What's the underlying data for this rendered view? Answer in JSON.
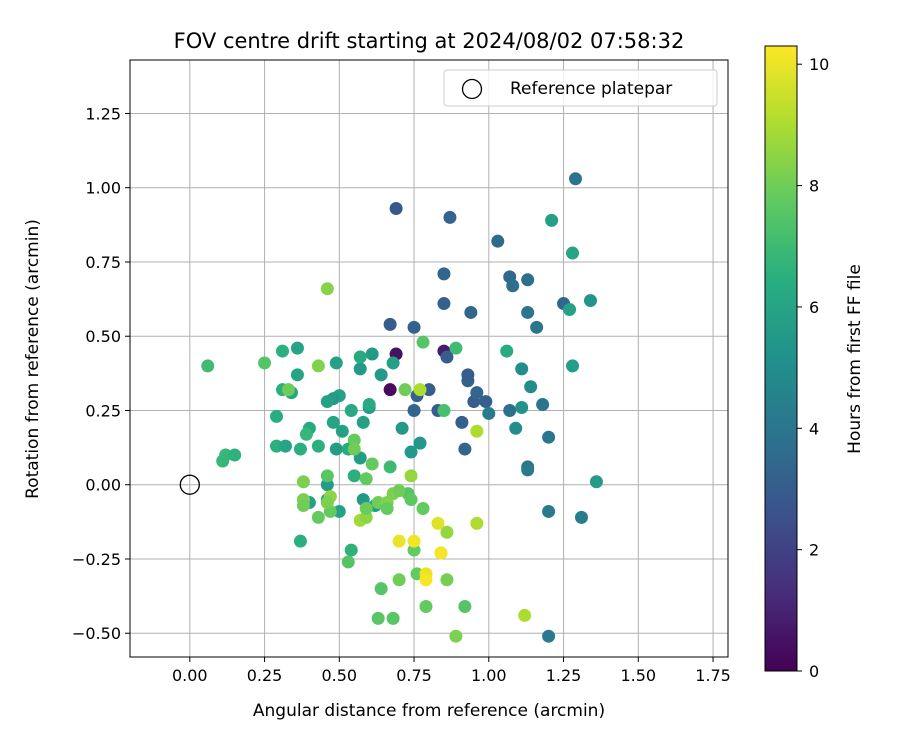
{
  "chart_data": {
    "type": "scatter",
    "title": "FOV centre drift starting at 2024/08/02 07:58:32",
    "xlabel": "Angular distance from reference (arcmin)",
    "ylabel": "Rotation from reference (arcmin)",
    "colorbar_label": "Hours from first FF file",
    "xlim": [
      -0.2,
      1.8
    ],
    "ylim": [
      -0.58,
      1.43
    ],
    "clim": [
      0,
      10.3
    ],
    "colormap": "viridis",
    "grid": true,
    "legend_position": "top-right",
    "x_ticks": [
      0.0,
      0.25,
      0.5,
      0.75,
      1.0,
      1.25,
      1.5,
      1.75
    ],
    "x_tick_labels": [
      "0.00",
      "0.25",
      "0.50",
      "0.75",
      "1.00",
      "1.25",
      "1.50",
      "1.75"
    ],
    "y_ticks": [
      -0.5,
      -0.25,
      0.0,
      0.25,
      0.5,
      0.75,
      1.0,
      1.25
    ],
    "y_tick_labels": [
      "−0.50",
      "−0.25",
      "0.00",
      "0.25",
      "0.50",
      "0.75",
      "1.00",
      "1.25"
    ],
    "c_ticks": [
      0,
      2,
      4,
      6,
      8,
      10
    ],
    "c_tick_labels": [
      "0",
      "2",
      "4",
      "6",
      "8",
      "10"
    ],
    "reference": {
      "label": "Reference platepar",
      "x": 0.0,
      "y": 0.0
    },
    "points": [
      {
        "x": 0.69,
        "y": 0.44,
        "h": 0.5
      },
      {
        "x": 0.67,
        "y": 0.32,
        "h": 0.3
      },
      {
        "x": 0.85,
        "y": 0.45,
        "h": 0.8
      },
      {
        "x": 0.69,
        "y": 0.93,
        "h": 2.8
      },
      {
        "x": 0.67,
        "y": 0.54,
        "h": 3.0
      },
      {
        "x": 0.75,
        "y": 0.53,
        "h": 3.2
      },
      {
        "x": 0.87,
        "y": 0.9,
        "h": 3.3
      },
      {
        "x": 0.85,
        "y": 0.71,
        "h": 3.3
      },
      {
        "x": 0.85,
        "y": 0.61,
        "h": 3.2
      },
      {
        "x": 0.86,
        "y": 0.43,
        "h": 3.0
      },
      {
        "x": 0.8,
        "y": 0.32,
        "h": 3.0
      },
      {
        "x": 0.76,
        "y": 0.3,
        "h": 3.2
      },
      {
        "x": 0.75,
        "y": 0.25,
        "h": 3.3
      },
      {
        "x": 0.83,
        "y": 0.25,
        "h": 3.0
      },
      {
        "x": 0.91,
        "y": 0.21,
        "h": 3.1
      },
      {
        "x": 0.93,
        "y": 0.35,
        "h": 3.2
      },
      {
        "x": 0.93,
        "y": 0.37,
        "h": 3.0
      },
      {
        "x": 0.94,
        "y": 0.58,
        "h": 3.4
      },
      {
        "x": 0.95,
        "y": 0.28,
        "h": 3.0
      },
      {
        "x": 0.96,
        "y": 0.31,
        "h": 3.3
      },
      {
        "x": 0.99,
        "y": 0.28,
        "h": 3.1
      },
      {
        "x": 0.92,
        "y": 0.12,
        "h": 3.3
      },
      {
        "x": 1.03,
        "y": 0.82,
        "h": 3.6
      },
      {
        "x": 1.07,
        "y": 0.7,
        "h": 3.5
      },
      {
        "x": 1.08,
        "y": 0.67,
        "h": 3.7
      },
      {
        "x": 1.13,
        "y": 0.69,
        "h": 3.7
      },
      {
        "x": 1.13,
        "y": 0.58,
        "h": 4.0
      },
      {
        "x": 1.16,
        "y": 0.53,
        "h": 4.0
      },
      {
        "x": 1.25,
        "y": 0.61,
        "h": 3.4
      },
      {
        "x": 1.29,
        "y": 1.03,
        "h": 3.9
      },
      {
        "x": 1.07,
        "y": 0.25,
        "h": 3.8
      },
      {
        "x": 1.0,
        "y": 0.24,
        "h": 4.3
      },
      {
        "x": 1.13,
        "y": 0.06,
        "h": 4.0
      },
      {
        "x": 1.13,
        "y": 0.05,
        "h": 4.2
      },
      {
        "x": 1.18,
        "y": 0.27,
        "h": 4.0
      },
      {
        "x": 1.2,
        "y": 0.16,
        "h": 4.0
      },
      {
        "x": 1.2,
        "y": -0.09,
        "h": 4.2
      },
      {
        "x": 1.31,
        "y": -0.11,
        "h": 4.3
      },
      {
        "x": 1.2,
        "y": -0.51,
        "h": 4.2
      },
      {
        "x": 1.11,
        "y": 0.39,
        "h": 5.0
      },
      {
        "x": 1.11,
        "y": 0.26,
        "h": 5.2
      },
      {
        "x": 1.09,
        "y": 0.19,
        "h": 5.0
      },
      {
        "x": 1.14,
        "y": 0.33,
        "h": 5.0
      },
      {
        "x": 1.21,
        "y": 0.89,
        "h": 5.8
      },
      {
        "x": 1.27,
        "y": 0.59,
        "h": 5.9
      },
      {
        "x": 1.28,
        "y": 0.78,
        "h": 6.0
      },
      {
        "x": 1.28,
        "y": 0.4,
        "h": 5.7
      },
      {
        "x": 1.34,
        "y": 0.62,
        "h": 5.3
      },
      {
        "x": 1.36,
        "y": 0.01,
        "h": 5.6
      },
      {
        "x": 1.06,
        "y": 0.45,
        "h": 6.3
      },
      {
        "x": 0.74,
        "y": 0.11,
        "h": 5.5
      },
      {
        "x": 0.71,
        "y": 0.19,
        "h": 5.5
      },
      {
        "x": 0.77,
        "y": 0.14,
        "h": 5.4
      },
      {
        "x": 0.68,
        "y": 0.41,
        "h": 5.8
      },
      {
        "x": 0.64,
        "y": 0.37,
        "h": 5.5
      },
      {
        "x": 0.61,
        "y": 0.44,
        "h": 5.5
      },
      {
        "x": 0.57,
        "y": 0.39,
        "h": 5.5
      },
      {
        "x": 0.57,
        "y": 0.43,
        "h": 6.2
      },
      {
        "x": 0.6,
        "y": 0.26,
        "h": 5.5
      },
      {
        "x": 0.6,
        "y": 0.27,
        "h": 6.3
      },
      {
        "x": 0.58,
        "y": 0.21,
        "h": 5.8
      },
      {
        "x": 0.54,
        "y": 0.25,
        "h": 6.2
      },
      {
        "x": 0.51,
        "y": 0.18,
        "h": 5.9
      },
      {
        "x": 0.49,
        "y": 0.41,
        "h": 5.8
      },
      {
        "x": 0.5,
        "y": 0.3,
        "h": 5.9
      },
      {
        "x": 0.48,
        "y": 0.29,
        "h": 5.5
      },
      {
        "x": 0.46,
        "y": 0.28,
        "h": 5.8
      },
      {
        "x": 0.48,
        "y": 0.21,
        "h": 6.0
      },
      {
        "x": 0.49,
        "y": 0.12,
        "h": 5.7
      },
      {
        "x": 0.57,
        "y": 0.09,
        "h": 5.7
      },
      {
        "x": 0.53,
        "y": 0.12,
        "h": 6.3
      },
      {
        "x": 0.55,
        "y": 0.03,
        "h": 6.5
      },
      {
        "x": 0.58,
        "y": -0.05,
        "h": 5.5
      },
      {
        "x": 0.62,
        "y": -0.07,
        "h": 5.7
      },
      {
        "x": 0.5,
        "y": -0.09,
        "h": 5.9
      },
      {
        "x": 0.46,
        "y": 0.0,
        "h": 5.6
      },
      {
        "x": 0.46,
        "y": -0.05,
        "h": 5.9
      },
      {
        "x": 0.4,
        "y": -0.06,
        "h": 5.8
      },
      {
        "x": 0.36,
        "y": 0.37,
        "h": 6.0
      },
      {
        "x": 0.36,
        "y": 0.46,
        "h": 6.0
      },
      {
        "x": 0.31,
        "y": 0.45,
        "h": 6.5
      },
      {
        "x": 0.34,
        "y": 0.31,
        "h": 6.1
      },
      {
        "x": 0.31,
        "y": 0.32,
        "h": 6.5
      },
      {
        "x": 0.29,
        "y": 0.23,
        "h": 6.4
      },
      {
        "x": 0.29,
        "y": 0.13,
        "h": 6.5
      },
      {
        "x": 0.32,
        "y": 0.13,
        "h": 6.0
      },
      {
        "x": 0.37,
        "y": 0.12,
        "h": 6.5
      },
      {
        "x": 0.4,
        "y": 0.19,
        "h": 6.2
      },
      {
        "x": 0.39,
        "y": 0.17,
        "h": 6.8
      },
      {
        "x": 0.43,
        "y": 0.13,
        "h": 6.5
      },
      {
        "x": 0.37,
        "y": -0.19,
        "h": 6.5
      },
      {
        "x": 0.11,
        "y": 0.08,
        "h": 6.8
      },
      {
        "x": 0.12,
        "y": 0.1,
        "h": 6.8
      },
      {
        "x": 0.15,
        "y": 0.1,
        "h": 6.6
      },
      {
        "x": 0.06,
        "y": 0.4,
        "h": 7.0
      },
      {
        "x": 0.25,
        "y": 0.41,
        "h": 7.5
      },
      {
        "x": 0.33,
        "y": 0.32,
        "h": 8.0
      },
      {
        "x": 0.43,
        "y": 0.4,
        "h": 8.3
      },
      {
        "x": 0.46,
        "y": 0.66,
        "h": 8.4
      },
      {
        "x": 0.72,
        "y": 0.32,
        "h": 8.0
      },
      {
        "x": 0.78,
        "y": 0.48,
        "h": 7.5
      },
      {
        "x": 0.85,
        "y": 0.25,
        "h": 7.2
      },
      {
        "x": 0.89,
        "y": 0.46,
        "h": 7.0
      },
      {
        "x": 0.54,
        "y": -0.22,
        "h": 6.6
      },
      {
        "x": 0.53,
        "y": -0.26,
        "h": 7.5
      },
      {
        "x": 0.64,
        "y": -0.35,
        "h": 7.5
      },
      {
        "x": 0.63,
        "y": -0.45,
        "h": 7.6
      },
      {
        "x": 0.68,
        "y": -0.45,
        "h": 7.6
      },
      {
        "x": 0.79,
        "y": -0.41,
        "h": 7.8
      },
      {
        "x": 0.92,
        "y": -0.41,
        "h": 7.5
      },
      {
        "x": 0.89,
        "y": -0.51,
        "h": 8.2
      },
      {
        "x": 0.73,
        "y": -0.03,
        "h": 7.5
      },
      {
        "x": 0.67,
        "y": 0.06,
        "h": 7.0
      },
      {
        "x": 0.61,
        "y": 0.07,
        "h": 7.8
      },
      {
        "x": 0.55,
        "y": 0.15,
        "h": 7.8
      },
      {
        "x": 0.55,
        "y": 0.12,
        "h": 8.0
      },
      {
        "x": 0.59,
        "y": 0.02,
        "h": 7.8
      },
      {
        "x": 0.46,
        "y": 0.03,
        "h": 7.6
      },
      {
        "x": 0.38,
        "y": 0.01,
        "h": 8.2
      },
      {
        "x": 0.38,
        "y": -0.05,
        "h": 8.2
      },
      {
        "x": 0.38,
        "y": -0.07,
        "h": 8.0
      },
      {
        "x": 0.43,
        "y": -0.11,
        "h": 7.8
      },
      {
        "x": 0.47,
        "y": -0.09,
        "h": 7.8
      },
      {
        "x": 0.47,
        "y": -0.04,
        "h": 8.5
      },
      {
        "x": 0.46,
        "y": -0.06,
        "h": 8.2
      },
      {
        "x": 0.57,
        "y": -0.12,
        "h": 8.8
      },
      {
        "x": 0.59,
        "y": -0.11,
        "h": 8.5
      },
      {
        "x": 0.59,
        "y": -0.08,
        "h": 7.9
      },
      {
        "x": 0.63,
        "y": -0.06,
        "h": 8.0
      },
      {
        "x": 0.66,
        "y": -0.06,
        "h": 8.3
      },
      {
        "x": 0.66,
        "y": -0.08,
        "h": 7.8
      },
      {
        "x": 0.68,
        "y": -0.03,
        "h": 8.2
      },
      {
        "x": 0.7,
        "y": -0.02,
        "h": 8.0
      },
      {
        "x": 0.74,
        "y": -0.05,
        "h": 7.7
      },
      {
        "x": 0.74,
        "y": 0.03,
        "h": 8.6
      },
      {
        "x": 0.78,
        "y": -0.08,
        "h": 7.8
      },
      {
        "x": 0.75,
        "y": -0.22,
        "h": 7.8
      },
      {
        "x": 0.76,
        "y": -0.3,
        "h": 7.8
      },
      {
        "x": 0.7,
        "y": -0.32,
        "h": 8.0
      },
      {
        "x": 0.86,
        "y": -0.16,
        "h": 8.6
      },
      {
        "x": 0.86,
        "y": -0.32,
        "h": 8.1
      },
      {
        "x": 0.84,
        "y": -0.23,
        "h": 8.3
      },
      {
        "x": 0.77,
        "y": 0.32,
        "h": 9.0
      },
      {
        "x": 0.96,
        "y": 0.18,
        "h": 9.0
      },
      {
        "x": 0.96,
        "y": -0.13,
        "h": 9.0
      },
      {
        "x": 1.12,
        "y": -0.44,
        "h": 9.0
      },
      {
        "x": 0.7,
        "y": -0.19,
        "h": 10.0
      },
      {
        "x": 0.75,
        "y": -0.19,
        "h": 10.1
      },
      {
        "x": 0.79,
        "y": -0.3,
        "h": 10.0
      },
      {
        "x": 0.79,
        "y": -0.32,
        "h": 10.2
      },
      {
        "x": 0.83,
        "y": -0.13,
        "h": 9.8
      },
      {
        "x": 0.84,
        "y": -0.23,
        "h": 10.2
      }
    ]
  }
}
